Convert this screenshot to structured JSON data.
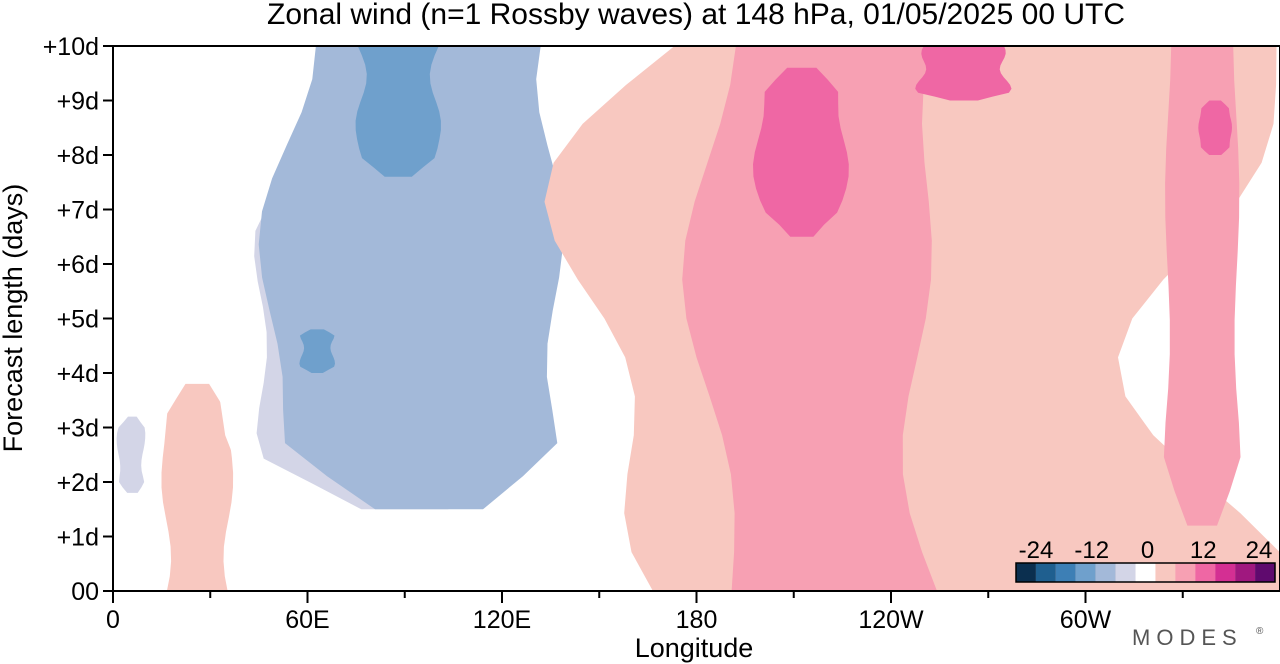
{
  "chart_data": {
    "type": "heatmap",
    "title": "Zonal wind (n=1 Rossby waves) at 148 hPa,  01/05/2025  00 UTC",
    "xlabel": "Longitude",
    "ylabel": "Forecast length (days)",
    "x_ticks": [
      {
        "lon": 0,
        "label": "0"
      },
      {
        "lon": 60,
        "label": "60E"
      },
      {
        "lon": 120,
        "label": "120E"
      },
      {
        "lon": 180,
        "label": "180"
      },
      {
        "lon": 240,
        "label": "120W"
      },
      {
        "lon": 300,
        "label": "60W"
      }
    ],
    "y_ticks": [
      {
        "day": 0,
        "label": "00"
      },
      {
        "day": 1,
        "label": "+1d"
      },
      {
        "day": 2,
        "label": "+2d"
      },
      {
        "day": 3,
        "label": "+3d"
      },
      {
        "day": 4,
        "label": "+4d"
      },
      {
        "day": 5,
        "label": "+5d"
      },
      {
        "day": 6,
        "label": "+6d"
      },
      {
        "day": 7,
        "label": "+7d"
      },
      {
        "day": 8,
        "label": "+8d"
      },
      {
        "day": 9,
        "label": "+9d"
      },
      {
        "day": 10,
        "label": "+10d"
      }
    ],
    "xlim": [
      0,
      360
    ],
    "ylim": [
      0,
      10
    ],
    "colorbar": {
      "levels": [
        -24,
        -20,
        -16,
        -12,
        -8,
        -4,
        4,
        8,
        12,
        16,
        20,
        24
      ],
      "labels": [
        "-24",
        "-12",
        "0",
        "12",
        "24"
      ],
      "colors": [
        "#0b2f4f",
        "#1f5f8f",
        "#3d7fb5",
        "#6fa0cc",
        "#a3b9d9",
        "#d3d5e7",
        "#ffffff",
        "#f8c8c0",
        "#f7a0b3",
        "#ef67a4",
        "#d42f93",
        "#a0187f",
        "#5f0a6e"
      ]
    },
    "features": [
      {
        "kind": "negative",
        "value": -4,
        "lon_range": [
          0,
          48
        ],
        "days": [
          0,
          10
        ],
        "peak_lon": 15
      },
      {
        "kind": "negative",
        "value": -8,
        "lon_range": [
          2,
          10
        ],
        "days": [
          1.8,
          3.2
        ],
        "peak_lon": 5
      },
      {
        "kind": "positive",
        "value": 4,
        "lon_range": [
          16,
          36
        ],
        "days": [
          0,
          3.8
        ],
        "peak_lon": 26
      },
      {
        "kind": "negative",
        "value": -4,
        "lon_range": [
          45,
          165
        ],
        "days": [
          0,
          10
        ],
        "peak_lon": 95
      },
      {
        "kind": "negative",
        "value": -8,
        "lon_range": [
          52,
          128
        ],
        "days": [
          1.5,
          8
        ],
        "peak_lon": 80
      },
      {
        "kind": "negative",
        "value": -12,
        "lon_range": [
          55,
          140
        ],
        "days": [
          1.5,
          10
        ],
        "peak_lon": 88
      },
      {
        "kind": "negative",
        "value": -16,
        "lon_range": [
          76,
          100
        ],
        "days": [
          7.6,
          10
        ],
        "peak_lon": 88
      },
      {
        "kind": "negative",
        "value": -16,
        "lon_range": [
          58,
          68
        ],
        "days": [
          4.0,
          4.8
        ],
        "peak_lon": 63
      },
      {
        "kind": "positive",
        "value": 4,
        "lon_range": [
          175,
          360
        ],
        "days": [
          0,
          10
        ],
        "peak_lon": 210
      },
      {
        "kind": "positive",
        "value": 8,
        "lon_range": [
          190,
          255
        ],
        "days": [
          0,
          10
        ],
        "peak_lon": 208
      },
      {
        "kind": "positive",
        "value": 12,
        "lon_range": [
          200,
          225
        ],
        "days": [
          6.5,
          9.6
        ],
        "peak_lon": 212
      },
      {
        "kind": "positive",
        "value": 12,
        "lon_range": [
          250,
          275
        ],
        "days": [
          9.0,
          10
        ],
        "peak_lon": 262
      },
      {
        "kind": "positive",
        "value": 8,
        "lon_range": [
          325,
          347
        ],
        "days": [
          1.2,
          10
        ],
        "peak_lon": 336
      },
      {
        "kind": "positive",
        "value": 12,
        "lon_range": [
          335,
          345
        ],
        "days": [
          8.0,
          9.0
        ],
        "peak_lon": 340
      }
    ],
    "grid": false,
    "legend": "bottom-right colorbar"
  },
  "brand": "MODES"
}
